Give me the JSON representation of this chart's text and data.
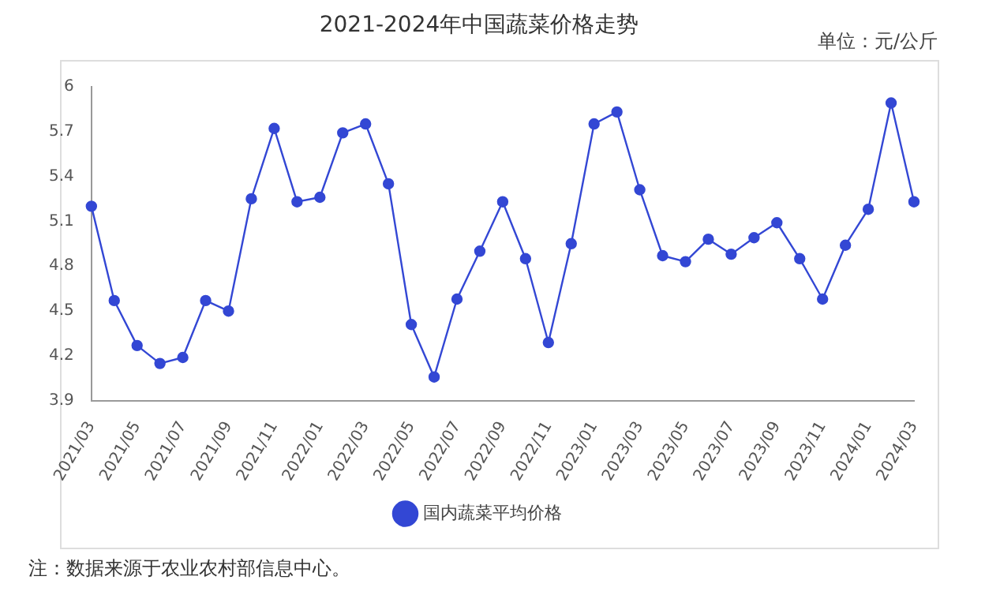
{
  "chart_data": {
    "type": "line",
    "title": "2021-2024年中国蔬菜价格走势",
    "annotations": [
      "单位：元/公斤",
      "注：数据来源于农业农村部信息中心。"
    ],
    "categories": [
      "2021/03",
      null,
      "2021/05",
      null,
      "2021/07",
      null,
      "2021/09",
      null,
      "2021/11",
      null,
      "2022/01",
      null,
      "2022/03",
      null,
      "2022/05",
      null,
      "2022/07",
      null,
      "2022/09",
      null,
      "2022/11",
      null,
      "2023/01",
      null,
      "2023/03",
      null,
      "2023/05",
      null,
      "2023/07",
      null,
      "2023/09",
      null,
      "2023/11",
      null,
      "2024/01",
      null,
      "2024/03"
    ],
    "series": [
      {
        "name": "国内蔬菜平均价格",
        "color": "#3347d4",
        "values": [
          5.2,
          4.57,
          4.27,
          4.15,
          4.19,
          4.57,
          4.5,
          5.25,
          5.72,
          5.23,
          5.26,
          5.69,
          5.75,
          5.35,
          4.41,
          4.06,
          4.58,
          4.9,
          5.23,
          4.85,
          4.29,
          4.95,
          5.75,
          5.83,
          5.31,
          4.87,
          4.83,
          4.98,
          4.88,
          4.99,
          5.09,
          4.85,
          4.58,
          4.94,
          5.18,
          5.89,
          5.23
        ]
      }
    ],
    "ylim": [
      3.9,
      6
    ],
    "yticks": [
      3.9,
      4.2,
      4.5,
      4.8,
      5.1,
      5.4,
      5.7,
      6
    ],
    "grid": false,
    "legend": "bottom",
    "marker": "circle",
    "line_style": "solid"
  }
}
